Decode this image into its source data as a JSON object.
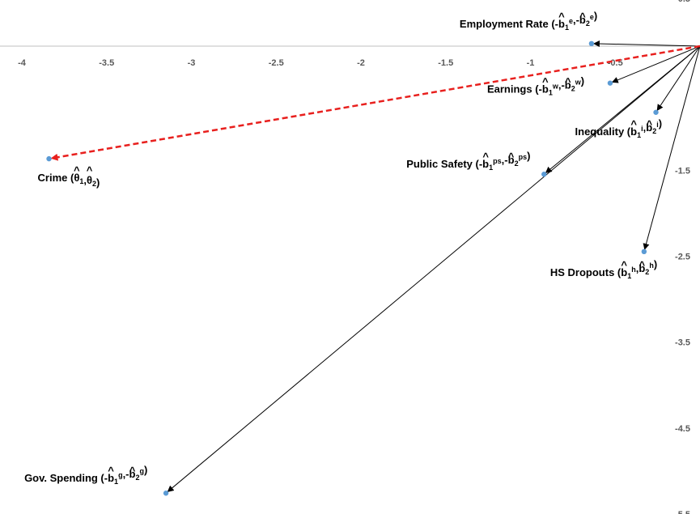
{
  "chart_data": {
    "type": "scatter",
    "xlim": [
      -4,
      0.05
    ],
    "ylim": [
      -5.5,
      0.5
    ],
    "x_ticks": [
      "-4",
      "-3.5",
      "-3",
      "-2.5",
      "-2",
      "-1.5",
      "-1",
      "-0.5"
    ],
    "y_ticks": [
      "0.5",
      "-1.5",
      "-2.5",
      "-3.5",
      "-4.5",
      "-5.5"
    ],
    "point_color": "#5b9bd5",
    "arrow_color": "#000000",
    "highlight_color": "#e8201e",
    "origin": [
      0,
      0
    ],
    "points": [
      {
        "name": "Employment Rate",
        "x": -0.64,
        "y": 0.03,
        "highlight": false,
        "label": [
          [
            "t",
            "Employment Rate (-"
          ],
          [
            "h",
            "b"
          ],
          [
            "s",
            "1"
          ],
          [
            "p",
            "e"
          ],
          [
            "t",
            ",-"
          ],
          [
            "h",
            "b"
          ],
          [
            "s",
            "2"
          ],
          [
            "p",
            "e"
          ],
          [
            "t",
            ")"
          ]
        ]
      },
      {
        "name": "Earnings",
        "x": -0.53,
        "y": -0.43,
        "highlight": false,
        "label": [
          [
            "t",
            "Earnings (-"
          ],
          [
            "h",
            "b"
          ],
          [
            "s",
            "1"
          ],
          [
            "p",
            "w"
          ],
          [
            "t",
            ",-"
          ],
          [
            "h",
            "b"
          ],
          [
            "s",
            "2"
          ],
          [
            "p",
            "w"
          ],
          [
            "t",
            ")"
          ]
        ]
      },
      {
        "name": "Inequality",
        "x": -0.26,
        "y": -0.77,
        "highlight": false,
        "label": [
          [
            "t",
            "Inequality ("
          ],
          [
            "h",
            "b"
          ],
          [
            "s",
            "1"
          ],
          [
            "p",
            "i"
          ],
          [
            "t",
            ","
          ],
          [
            "h",
            "b"
          ],
          [
            "s",
            "2"
          ],
          [
            "p",
            "i"
          ],
          [
            "t",
            ")"
          ]
        ]
      },
      {
        "name": "Public Safety",
        "x": -0.92,
        "y": -1.49,
        "highlight": false,
        "label": [
          [
            "t",
            "Public Safety (-"
          ],
          [
            "h",
            "b"
          ],
          [
            "s",
            "1"
          ],
          [
            "p",
            "ps"
          ],
          [
            "t",
            ",-"
          ],
          [
            "h",
            "b"
          ],
          [
            "s",
            "2"
          ],
          [
            "p",
            "ps"
          ],
          [
            "t",
            ")"
          ]
        ]
      },
      {
        "name": "HS Dropouts",
        "x": -0.33,
        "y": -2.39,
        "highlight": false,
        "label": [
          [
            "t",
            "HS Dropouts ("
          ],
          [
            "h",
            "b"
          ],
          [
            "s",
            "1"
          ],
          [
            "p",
            "h"
          ],
          [
            "t",
            ","
          ],
          [
            "h",
            "b"
          ],
          [
            "s",
            "2"
          ],
          [
            "p",
            "h"
          ],
          [
            "t",
            ")"
          ]
        ]
      },
      {
        "name": "Gov. Spending",
        "x": -3.15,
        "y": -5.2,
        "highlight": false,
        "label": [
          [
            "t",
            "Gov. Spending (-"
          ],
          [
            "h",
            "b"
          ],
          [
            "s",
            "1"
          ],
          [
            "p",
            "g"
          ],
          [
            "t",
            ",-"
          ],
          [
            "h",
            "b"
          ],
          [
            "s",
            "2"
          ],
          [
            "p",
            "g"
          ],
          [
            "t",
            ")"
          ]
        ]
      },
      {
        "name": "Crime",
        "x": -3.84,
        "y": -1.31,
        "highlight": true,
        "label": [
          [
            "t",
            "Crime ("
          ],
          [
            "h",
            "θ"
          ],
          [
            "s",
            "1"
          ],
          [
            "t",
            ","
          ],
          [
            "h",
            "θ"
          ],
          [
            "s",
            "2"
          ],
          [
            "t",
            ")"
          ]
        ]
      }
    ]
  }
}
